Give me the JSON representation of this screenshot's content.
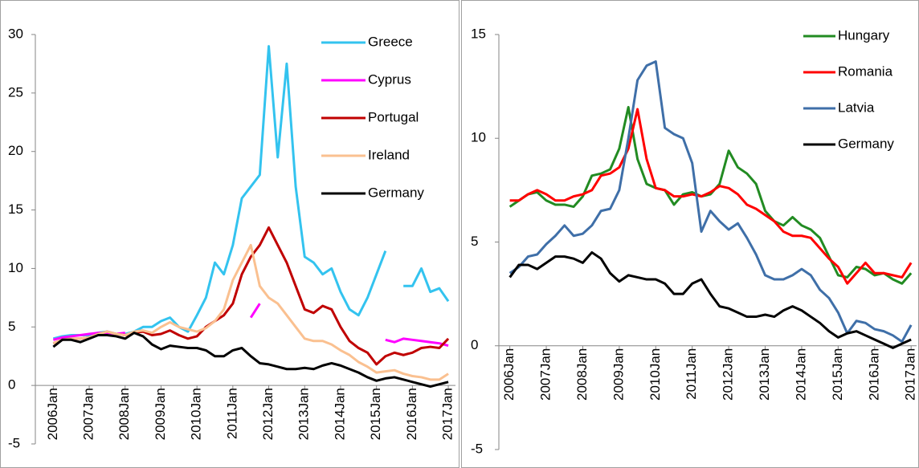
{
  "chart_data": [
    {
      "type": "line",
      "x": [
        2006,
        2006.25,
        2006.5,
        2006.75,
        2007,
        2007.25,
        2007.5,
        2007.75,
        2008,
        2008.25,
        2008.5,
        2008.75,
        2009,
        2009.25,
        2009.5,
        2009.75,
        2010,
        2010.25,
        2010.5,
        2010.75,
        2011,
        2011.25,
        2011.5,
        2011.75,
        2012,
        2012.25,
        2012.5,
        2012.75,
        2013,
        2013.25,
        2013.5,
        2013.75,
        2014,
        2014.25,
        2014.5,
        2014.75,
        2015,
        2015.25,
        2015.5,
        2015.75,
        2016,
        2016.25,
        2016.5,
        2016.75,
        2017
      ],
      "xlim": [
        2005.5,
        2017.2
      ],
      "xticks": [
        {
          "value": 2006,
          "label": "2006Jan"
        },
        {
          "value": 2007,
          "label": "2007Jan"
        },
        {
          "value": 2008,
          "label": "2008Jan"
        },
        {
          "value": 2009,
          "label": "2009Jan"
        },
        {
          "value": 2010,
          "label": "2010Jan"
        },
        {
          "value": 2011,
          "label": "2011Jan"
        },
        {
          "value": 2012,
          "label": "2012Jan"
        },
        {
          "value": 2013,
          "label": "2013Jan"
        },
        {
          "value": 2014,
          "label": "2014Jan"
        },
        {
          "value": 2015,
          "label": "2015Jan"
        },
        {
          "value": 2016,
          "label": "2016Jan"
        },
        {
          "value": 2017,
          "label": "2017Jan"
        }
      ],
      "ylim": [
        -5,
        30
      ],
      "yticks": [
        -5,
        0,
        5,
        10,
        15,
        20,
        25,
        30
      ],
      "legend": "upper right",
      "series": [
        {
          "name": "Greece",
          "color": "#33c3ef",
          "values": [
            4.0,
            4.2,
            4.3,
            4.3,
            4.3,
            4.5,
            4.6,
            4.4,
            4.4,
            4.6,
            5.0,
            5.0,
            5.5,
            5.8,
            5.0,
            4.6,
            6.0,
            7.5,
            10.5,
            9.5,
            12.0,
            16.0,
            17.0,
            18.0,
            29.0,
            19.5,
            27.5,
            17.0,
            11.0,
            10.5,
            9.5,
            10.0,
            8.0,
            6.5,
            6.0,
            7.5,
            9.5,
            11.5,
            null,
            8.5,
            8.5,
            10.0,
            8.0,
            8.3,
            7.2
          ]
        },
        {
          "name": "Cyprus",
          "color": "#ff00ff",
          "values": [
            3.9,
            4.1,
            4.2,
            4.3,
            4.4,
            4.5,
            4.5,
            4.4,
            4.5,
            null,
            null,
            null,
            null,
            null,
            null,
            null,
            null,
            null,
            null,
            null,
            null,
            null,
            5.8,
            7.0,
            null,
            null,
            null,
            null,
            null,
            null,
            null,
            null,
            null,
            null,
            null,
            null,
            null,
            3.9,
            3.7,
            4.0,
            3.9,
            3.8,
            3.7,
            3.6,
            3.4
          ]
        },
        {
          "name": "Portugal",
          "color": "#c00000",
          "values": [
            3.6,
            3.9,
            4.0,
            4.0,
            4.1,
            4.4,
            4.6,
            4.4,
            4.3,
            4.5,
            4.6,
            4.3,
            4.4,
            4.7,
            4.3,
            4.0,
            4.2,
            5.0,
            5.5,
            6.0,
            7.0,
            9.5,
            11.0,
            12.0,
            13.5,
            12.0,
            10.5,
            8.5,
            6.5,
            6.2,
            6.8,
            6.5,
            5.0,
            3.8,
            3.2,
            2.8,
            1.8,
            2.5,
            2.8,
            2.6,
            2.8,
            3.2,
            3.3,
            3.2,
            4.0
          ]
        },
        {
          "name": "Ireland",
          "color": "#fac090",
          "values": [
            3.6,
            3.9,
            4.0,
            4.0,
            4.1,
            4.4,
            4.6,
            4.4,
            4.3,
            4.6,
            4.7,
            4.5,
            5.0,
            5.4,
            5.0,
            4.8,
            4.6,
            4.9,
            5.5,
            6.5,
            9.0,
            10.5,
            12.0,
            8.5,
            7.5,
            7.0,
            6.0,
            5.0,
            4.0,
            3.8,
            3.8,
            3.5,
            3.0,
            2.6,
            2.0,
            1.6,
            1.1,
            1.2,
            1.3,
            1.0,
            0.8,
            0.7,
            0.5,
            0.5,
            1.0
          ]
        },
        {
          "name": "Germany",
          "color": "#000000",
          "values": [
            3.3,
            3.9,
            3.9,
            3.7,
            4.0,
            4.3,
            4.3,
            4.2,
            4.0,
            4.5,
            4.2,
            3.5,
            3.1,
            3.4,
            3.3,
            3.2,
            3.2,
            3.0,
            2.5,
            2.5,
            3.0,
            3.2,
            2.5,
            1.9,
            1.8,
            1.6,
            1.4,
            1.4,
            1.5,
            1.4,
            1.7,
            1.9,
            1.7,
            1.4,
            1.1,
            0.7,
            0.4,
            0.6,
            0.7,
            0.5,
            0.3,
            0.1,
            -0.1,
            0.1,
            0.3
          ]
        }
      ]
    },
    {
      "type": "line",
      "x": [
        2006,
        2006.25,
        2006.5,
        2006.75,
        2007,
        2007.25,
        2007.5,
        2007.75,
        2008,
        2008.25,
        2008.5,
        2008.75,
        2009,
        2009.25,
        2009.5,
        2009.75,
        2010,
        2010.25,
        2010.5,
        2010.75,
        2011,
        2011.25,
        2011.5,
        2011.75,
        2012,
        2012.25,
        2012.5,
        2012.75,
        2013,
        2013.25,
        2013.5,
        2013.75,
        2014,
        2014.25,
        2014.5,
        2014.75,
        2015,
        2015.25,
        2015.5,
        2015.75,
        2016,
        2016.25,
        2016.5,
        2016.75,
        2017
      ],
      "xlim": [
        2005.7,
        2017.15
      ],
      "xticks": [
        {
          "value": 2006,
          "label": "2006Jan"
        },
        {
          "value": 2007,
          "label": "2007Jan"
        },
        {
          "value": 2008,
          "label": "2008Jan"
        },
        {
          "value": 2009,
          "label": "2009Jan"
        },
        {
          "value": 2010,
          "label": "2010Jan"
        },
        {
          "value": 2011,
          "label": "2011Jan"
        },
        {
          "value": 2012,
          "label": "2012Jan"
        },
        {
          "value": 2013,
          "label": "2013Jan"
        },
        {
          "value": 2014,
          "label": "2014Jan"
        },
        {
          "value": 2015,
          "label": "2015Jan"
        },
        {
          "value": 2016,
          "label": "2016Jan"
        },
        {
          "value": 2017,
          "label": "2017Jan"
        }
      ],
      "ylim": [
        -5,
        15
      ],
      "yticks": [
        -5,
        0,
        5,
        10,
        15
      ],
      "legend": "upper right",
      "series": [
        {
          "name": "Hungary",
          "color": "#228b22",
          "values": [
            6.7,
            7.0,
            7.3,
            7.4,
            7.0,
            6.8,
            6.8,
            6.7,
            7.2,
            8.2,
            8.3,
            8.5,
            9.5,
            11.5,
            9.0,
            7.8,
            7.6,
            7.5,
            6.8,
            7.3,
            7.4,
            7.2,
            7.3,
            7.8,
            9.4,
            8.6,
            8.3,
            7.8,
            6.5,
            6.0,
            5.8,
            6.2,
            5.8,
            5.6,
            5.2,
            4.3,
            3.4,
            3.3,
            3.8,
            3.7,
            3.4,
            3.5,
            3.2,
            3.0,
            3.5
          ]
        },
        {
          "name": "Romania",
          "color": "#ff0000",
          "values": [
            7.0,
            7.0,
            7.3,
            7.5,
            7.3,
            7.0,
            7.0,
            7.2,
            7.3,
            7.5,
            8.2,
            8.3,
            8.6,
            9.5,
            11.4,
            9.0,
            7.6,
            7.5,
            7.2,
            7.2,
            7.3,
            7.2,
            7.4,
            7.7,
            7.6,
            7.3,
            6.8,
            6.6,
            6.3,
            6.0,
            5.5,
            5.3,
            5.3,
            5.2,
            4.7,
            4.2,
            3.8,
            3.0,
            3.5,
            4.0,
            3.5,
            3.5,
            3.4,
            3.3,
            4.0
          ]
        },
        {
          "name": "Latvia",
          "color": "#3f6fa8",
          "values": [
            3.5,
            3.8,
            4.3,
            4.4,
            4.9,
            5.3,
            5.8,
            5.3,
            5.4,
            5.8,
            6.5,
            6.6,
            7.5,
            10.0,
            12.8,
            13.5,
            13.7,
            10.5,
            10.2,
            10.0,
            8.8,
            5.5,
            6.5,
            6.0,
            5.6,
            5.9,
            5.2,
            4.4,
            3.4,
            3.2,
            3.2,
            3.4,
            3.7,
            3.4,
            2.7,
            2.3,
            1.6,
            0.6,
            1.2,
            1.1,
            0.8,
            0.7,
            0.5,
            0.2,
            1.0
          ]
        },
        {
          "name": "Germany",
          "color": "#000000",
          "values": [
            3.3,
            3.9,
            3.9,
            3.7,
            4.0,
            4.3,
            4.3,
            4.2,
            4.0,
            4.5,
            4.2,
            3.5,
            3.1,
            3.4,
            3.3,
            3.2,
            3.2,
            3.0,
            2.5,
            2.5,
            3.0,
            3.2,
            2.5,
            1.9,
            1.8,
            1.6,
            1.4,
            1.4,
            1.5,
            1.4,
            1.7,
            1.9,
            1.7,
            1.4,
            1.1,
            0.7,
            0.4,
            0.6,
            0.7,
            0.5,
            0.3,
            0.1,
            -0.1,
            0.1,
            0.3
          ]
        }
      ]
    }
  ]
}
